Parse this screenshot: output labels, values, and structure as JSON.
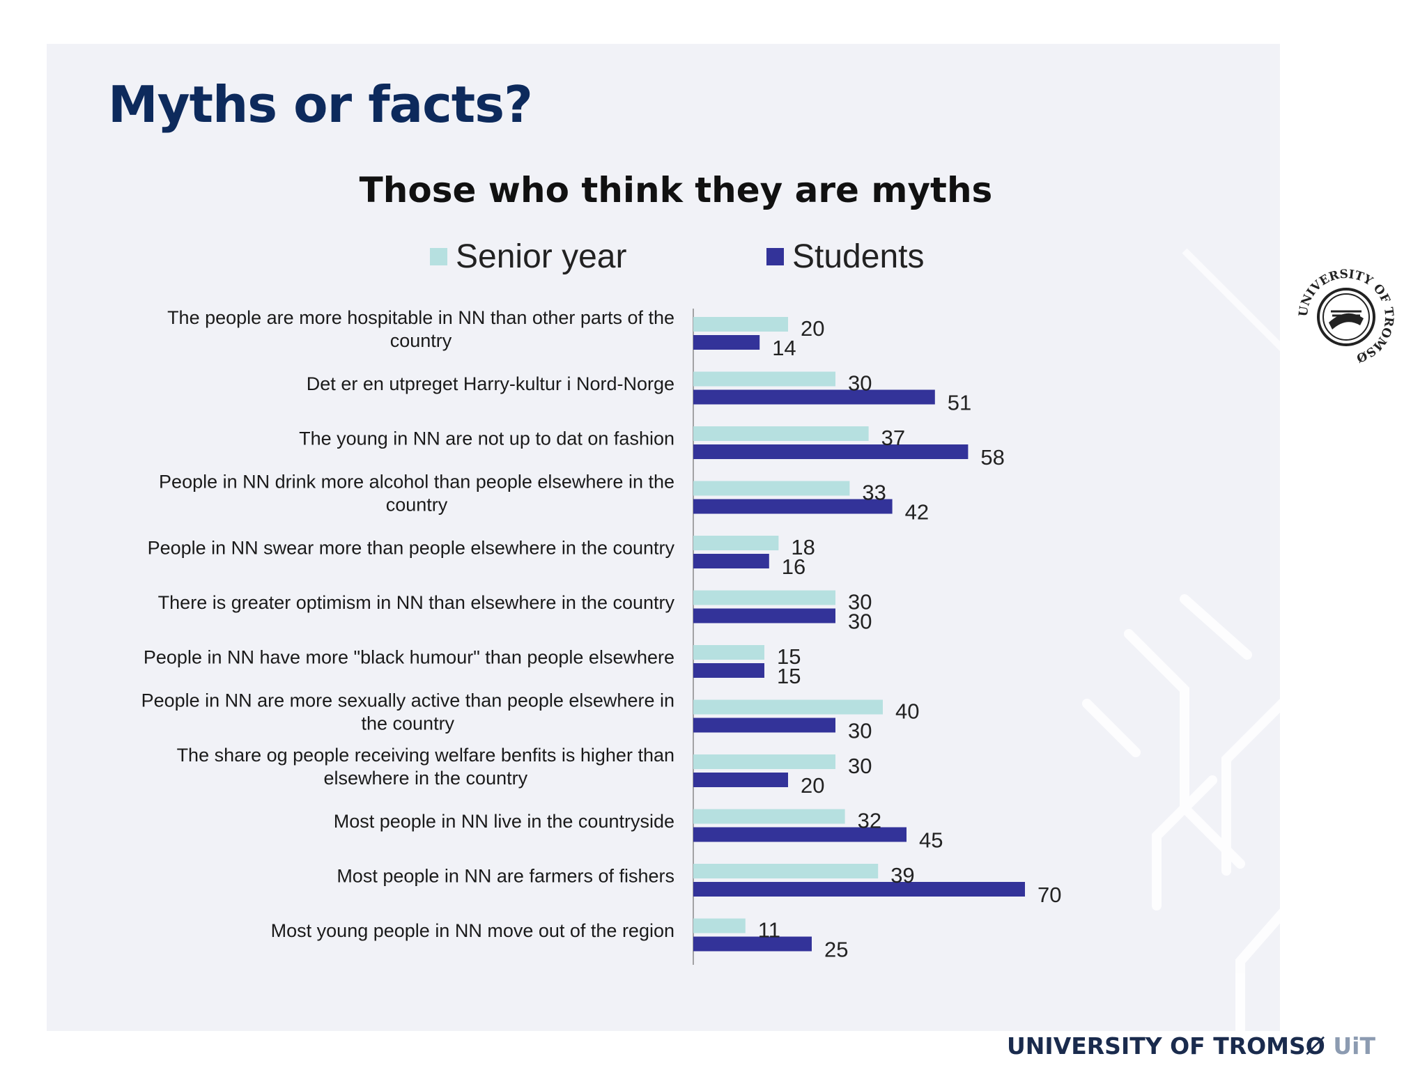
{
  "slide": {
    "title": "Myths or facts?",
    "footer_brand": "UNIVERSITY OF TROMSØ",
    "footer_abbr": "UiT",
    "seal_text": "UNIVERSITY OF TROMSØ"
  },
  "colors": {
    "senior": "#b6e0e0",
    "students": "#333399",
    "title": "#0d2a5c",
    "background": "#f1f2f7"
  },
  "chart_data": {
    "type": "bar",
    "orientation": "horizontal",
    "title": "Those who think they are myths",
    "legend_position": "top",
    "categories": [
      [
        "The people are more hospitable in NN than other parts of the",
        "country"
      ],
      [
        "Det er en utpreget Harry-kultur i Nord-Norge"
      ],
      [
        "The young in NN are not up to dat on fashion"
      ],
      [
        "People in NN drink more alcohol than people elsewhere in the",
        "country"
      ],
      [
        "People in NN swear more than people elsewhere in the country"
      ],
      [
        "There is greater optimism in NN than elsewhere in the country"
      ],
      [
        "People in NN have more \"black humour\" than people elsewhere"
      ],
      [
        "People in NN are more sexually active than people elsewhere in",
        "the country"
      ],
      [
        "The share og people receiving welfare benfits is higher than",
        "elsewhere in the country"
      ],
      [
        "Most people in NN live in the countryside"
      ],
      [
        "Most people in NN are farmers of fishers"
      ],
      [
        "Most young people in NN move out of the region"
      ]
    ],
    "series": [
      {
        "name": "Senior year",
        "color": "#b6e0e0",
        "values": [
          20,
          30,
          37,
          33,
          18,
          30,
          15,
          40,
          30,
          32,
          39,
          11
        ]
      },
      {
        "name": "Students",
        "color": "#333399",
        "values": [
          14,
          51,
          58,
          42,
          16,
          30,
          15,
          30,
          20,
          45,
          70,
          25
        ]
      }
    ],
    "xlim": [
      0,
      80
    ],
    "grid": false
  }
}
